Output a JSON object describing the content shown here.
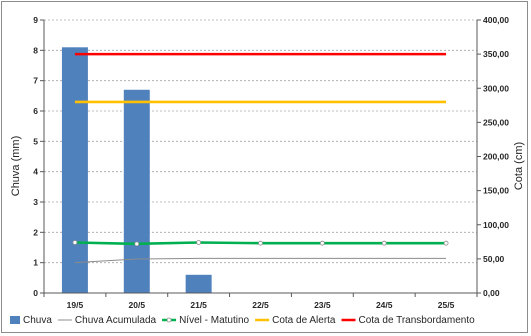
{
  "chart_data": {
    "type": "bar",
    "categories": [
      "19/5",
      "20/5",
      "21/5",
      "22/5",
      "23/5",
      "24/5",
      "25/5"
    ],
    "ylabel": "Chuva (mm)",
    "ylabel_right": "Cota (cm)",
    "ylim": [
      0,
      9
    ],
    "ylim_right": [
      0,
      400
    ],
    "y_ticks": [
      "0",
      "1",
      "2",
      "3",
      "4",
      "5",
      "6",
      "7",
      "8",
      "9"
    ],
    "y_right_ticks": [
      "0,00",
      "50,00",
      "100,00",
      "150,00",
      "200,00",
      "250,00",
      "300,00",
      "350,00",
      "400,00"
    ],
    "grid": true,
    "legend_position": "bottom",
    "series": [
      {
        "name": "Chuva",
        "kind": "bar",
        "axis": "left",
        "color": "#4f81bd",
        "values": [
          8.1,
          6.7,
          0.6,
          0,
          0,
          0,
          0
        ]
      },
      {
        "name": "Chuva Acumulada",
        "kind": "line",
        "axis": "left",
        "color": "#8c8c8c",
        "values": [
          1.0,
          1.12,
          1.14,
          1.14,
          1.14,
          1.14,
          1.14
        ]
      },
      {
        "name": "Nível - Matutino",
        "kind": "line-marker",
        "axis": "right",
        "color": "#00b050",
        "values": [
          74,
          72,
          74,
          73,
          73,
          73,
          73
        ]
      },
      {
        "name": "Cota de Alerta",
        "kind": "line",
        "axis": "right",
        "color": "#ffc000",
        "values": [
          280,
          280,
          280,
          280,
          280,
          280,
          280
        ]
      },
      {
        "name": "Cota de Transbordamento",
        "kind": "line",
        "axis": "right",
        "color": "#ff0000",
        "values": [
          350,
          350,
          350,
          350,
          350,
          350,
          350
        ]
      }
    ]
  }
}
